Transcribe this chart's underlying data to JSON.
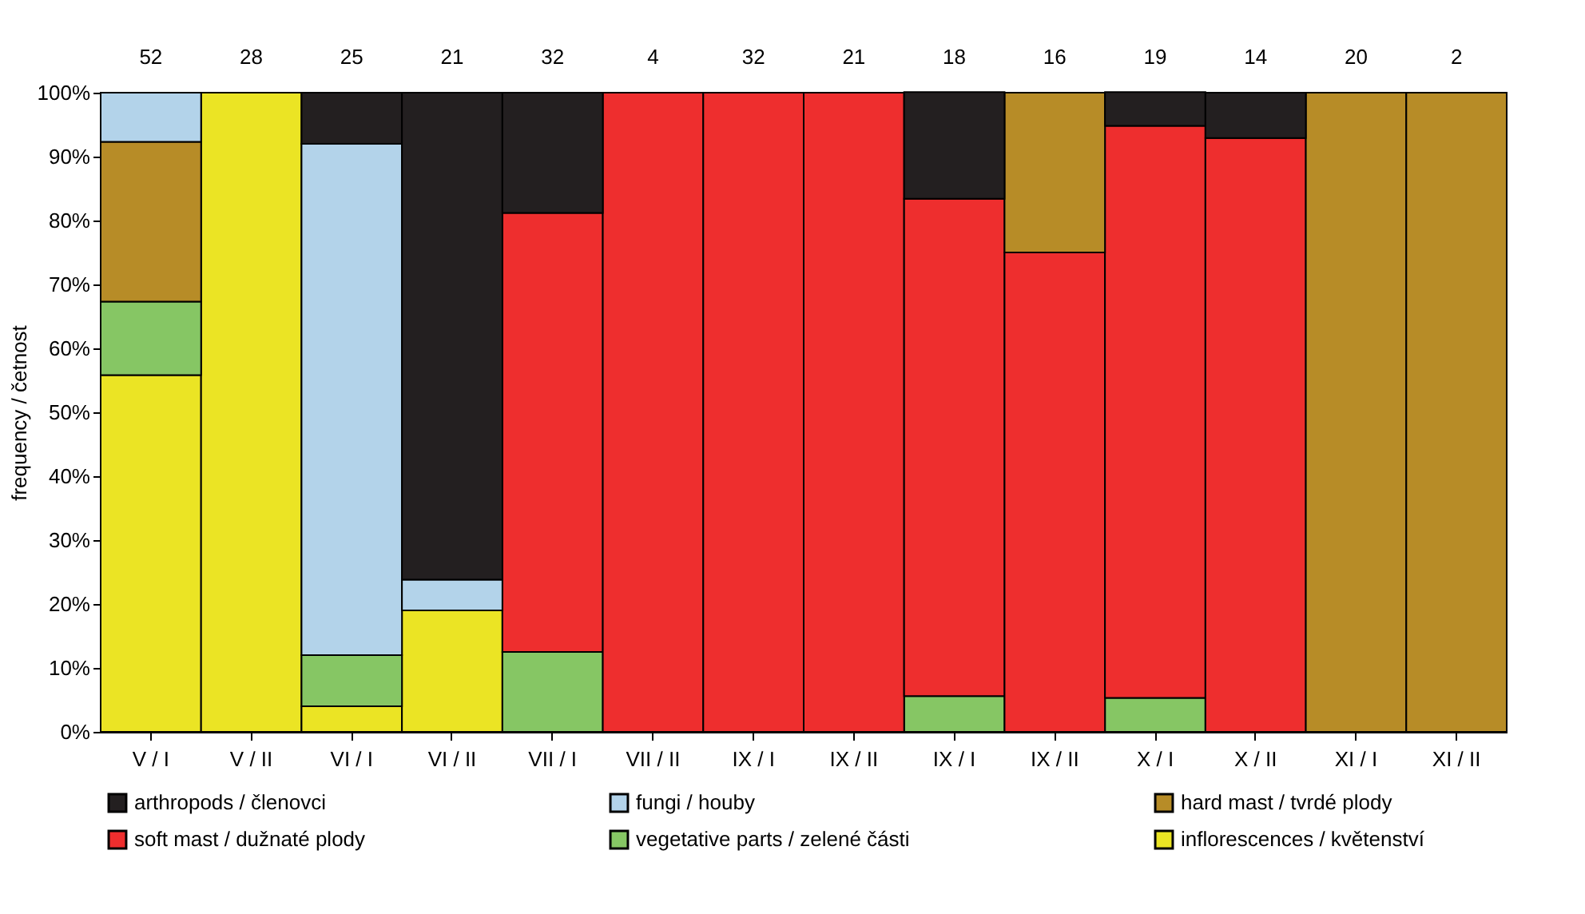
{
  "chart_data": {
    "type": "bar",
    "stacked": true,
    "ylabel": "frequency / četnost",
    "legend": "bottom",
    "categories": [
      "V / I",
      "V / II",
      "VI / I",
      "VI / II",
      "VII / I",
      "VII / II",
      "IX / I",
      "IX / II",
      "IX / I",
      "IX / II",
      "X / I",
      "X / II",
      "XI / I",
      "XI / II"
    ],
    "series": [
      {
        "name": "inflorescences / květenství",
        "color": "#ebe424",
        "values": [
          55.8,
          100,
          4,
          19,
          0,
          0,
          0,
          0,
          0,
          0,
          0,
          0,
          0,
          0
        ]
      },
      {
        "name": "vegetative parts / zelené části",
        "color": "#86c664",
        "values": [
          11.5,
          0,
          8,
          0,
          12.5,
          0,
          0,
          0,
          5.6,
          0,
          5.3,
          0,
          0,
          0
        ]
      },
      {
        "name": "soft mast / dužnaté plody",
        "color": "#ee2e2e",
        "values": [
          0,
          0,
          0,
          0,
          68.7,
          100,
          100,
          100,
          77.8,
          75,
          89.5,
          92.9,
          0,
          0
        ]
      },
      {
        "name": "hard mast / tvrdé plody",
        "color": "#b78c27",
        "values": [
          25,
          0,
          0,
          0,
          0,
          0,
          0,
          0,
          0,
          25,
          0,
          0,
          100,
          100
        ]
      },
      {
        "name": "fungi / houby",
        "color": "#b3d3ea",
        "values": [
          7.7,
          0,
          80,
          4.8,
          0,
          0,
          0,
          0,
          0,
          0,
          0,
          0,
          0,
          0
        ]
      },
      {
        "name": "arthropods / členovci",
        "color": "#231f20",
        "values": [
          0,
          0,
          8,
          76.2,
          18.8,
          0,
          0,
          0,
          16.7,
          0,
          5.3,
          7.1,
          0,
          0
        ]
      }
    ],
    "ylim": [
      0,
      100
    ],
    "yticks": [
      {
        "value": 0,
        "label": "0%"
      },
      {
        "value": 10,
        "label": "10%"
      },
      {
        "value": 20,
        "label": "20%"
      },
      {
        "value": 30,
        "label": "30%"
      },
      {
        "value": 40,
        "label": "40%"
      },
      {
        "value": 50,
        "label": "50%"
      },
      {
        "value": 60,
        "label": "60%"
      },
      {
        "value": 70,
        "label": "70%"
      },
      {
        "value": 80,
        "label": "80%"
      },
      {
        "value": 90,
        "label": "90%"
      },
      {
        "value": 100,
        "label": "100%"
      }
    ],
    "annotations": [
      "52",
      "28",
      "25",
      "21",
      "32",
      "4",
      "32",
      "21",
      "18",
      "16",
      "19",
      "14",
      "20",
      "2"
    ]
  }
}
